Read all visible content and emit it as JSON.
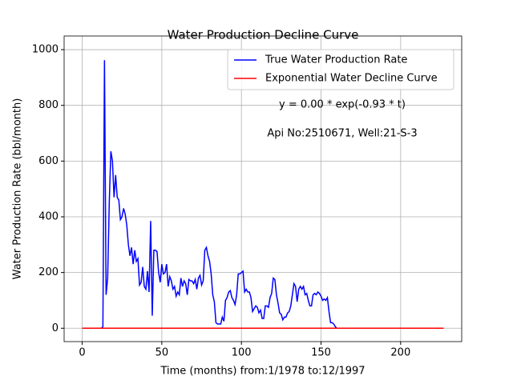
{
  "chart_data": {
    "type": "line",
    "title": "Water Production Decline Curve",
    "xlabel": "Time (months) from:1/1978 to:12/1997",
    "ylabel": "Water Production Rate (bbl/month)",
    "annotations": [
      "y = 0.00 * exp(-0.93 * t)",
      "Api No:2510671, Well:21-S-3"
    ],
    "xlim": [
      -11.35,
      238.35
    ],
    "ylim": [
      -48,
      1049
    ],
    "xticks": [
      0,
      50,
      100,
      150,
      200
    ],
    "yticks": [
      0,
      200,
      400,
      600,
      800,
      1000
    ],
    "grid": true,
    "legend": "upper right",
    "series": [
      {
        "name": "True Water Production Rate",
        "color": "#0000ff",
        "x": [
          0,
          1,
          2,
          3,
          4,
          5,
          6,
          7,
          8,
          9,
          10,
          11,
          12,
          13,
          14,
          15,
          16,
          17,
          18,
          19,
          20,
          21,
          22,
          23,
          24,
          25,
          26,
          27,
          28,
          29,
          30,
          31,
          32,
          33,
          34,
          35,
          36,
          37,
          38,
          39,
          40,
          41,
          42,
          43,
          44,
          45,
          46,
          47,
          48,
          49,
          50,
          51,
          52,
          53,
          54,
          55,
          56,
          57,
          58,
          59,
          60,
          61,
          62,
          63,
          64,
          65,
          66,
          67,
          68,
          69,
          70,
          71,
          72,
          73,
          74,
          75,
          76,
          77,
          78,
          79,
          80,
          81,
          82,
          83,
          84,
          85,
          86,
          87,
          88,
          89,
          90,
          91,
          92,
          93,
          94,
          95,
          96,
          97,
          98,
          99,
          100,
          101,
          102,
          103,
          104,
          105,
          106,
          107,
          108,
          109,
          110,
          111,
          112,
          113,
          114,
          115,
          116,
          117,
          118,
          119,
          120,
          121,
          122,
          123,
          124,
          125,
          126,
          127,
          128,
          129,
          130,
          131,
          132,
          133,
          134,
          135,
          136,
          137,
          138,
          139,
          140,
          141,
          142,
          143,
          144,
          145,
          146,
          147,
          148,
          149,
          150,
          151,
          152,
          153,
          154,
          155,
          156,
          157,
          158,
          159,
          160,
          227
        ],
        "values": [
          0,
          0,
          0,
          0,
          0,
          0,
          0,
          0,
          0,
          0,
          0,
          0,
          0,
          5,
          962,
          120,
          180,
          450,
          635,
          600,
          470,
          550,
          470,
          460,
          390,
          400,
          430,
          410,
          370,
          300,
          260,
          290,
          230,
          280,
          240,
          250,
          155,
          165,
          220,
          150,
          140,
          205,
          130,
          385,
          45,
          280,
          280,
          275,
          200,
          165,
          230,
          195,
          200,
          230,
          150,
          185,
          170,
          140,
          150,
          115,
          130,
          120,
          180,
          150,
          170,
          160,
          120,
          175,
          170,
          170,
          160,
          175,
          140,
          180,
          190,
          155,
          170,
          280,
          290,
          260,
          240,
          195,
          120,
          95,
          20,
          15,
          15,
          15,
          40,
          25,
          100,
          110,
          130,
          135,
          110,
          100,
          85,
          120,
          195,
          195,
          200,
          205,
          130,
          140,
          130,
          130,
          110,
          60,
          70,
          80,
          75,
          55,
          65,
          35,
          35,
          80,
          80,
          75,
          110,
          125,
          180,
          175,
          120,
          90,
          55,
          50,
          30,
          40,
          40,
          55,
          60,
          80,
          120,
          160,
          150,
          95,
          140,
          150,
          140,
          150,
          120,
          125,
          100,
          80,
          80,
          120,
          125,
          120,
          130,
          125,
          115,
          100,
          105,
          100,
          110,
          60,
          20,
          20,
          15,
          5,
          0,
          0
        ]
      },
      {
        "name": "Exponential Water Decline Curve",
        "color": "#ff0000",
        "x": [
          0,
          227
        ],
        "values": [
          0,
          0
        ]
      }
    ]
  }
}
